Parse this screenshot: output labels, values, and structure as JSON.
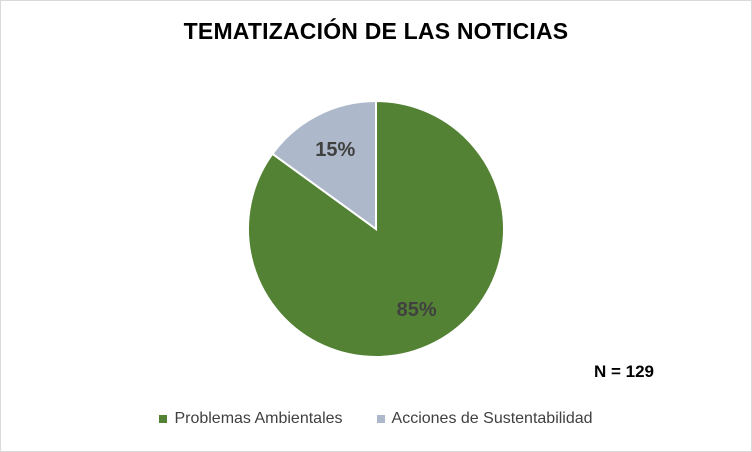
{
  "chart_data": {
    "type": "pie",
    "title": "TEMATIZACIÓN DE LAS NOTICIAS",
    "slices": [
      {
        "name": "Problemas Ambientales",
        "value": 85,
        "label": "85%",
        "color": "#548235"
      },
      {
        "name": "Acciones de Sustentabilidad",
        "value": 15,
        "label": "15%",
        "color": "#adb9ca"
      }
    ],
    "annotation": "N = 129",
    "legend_position": "bottom"
  }
}
